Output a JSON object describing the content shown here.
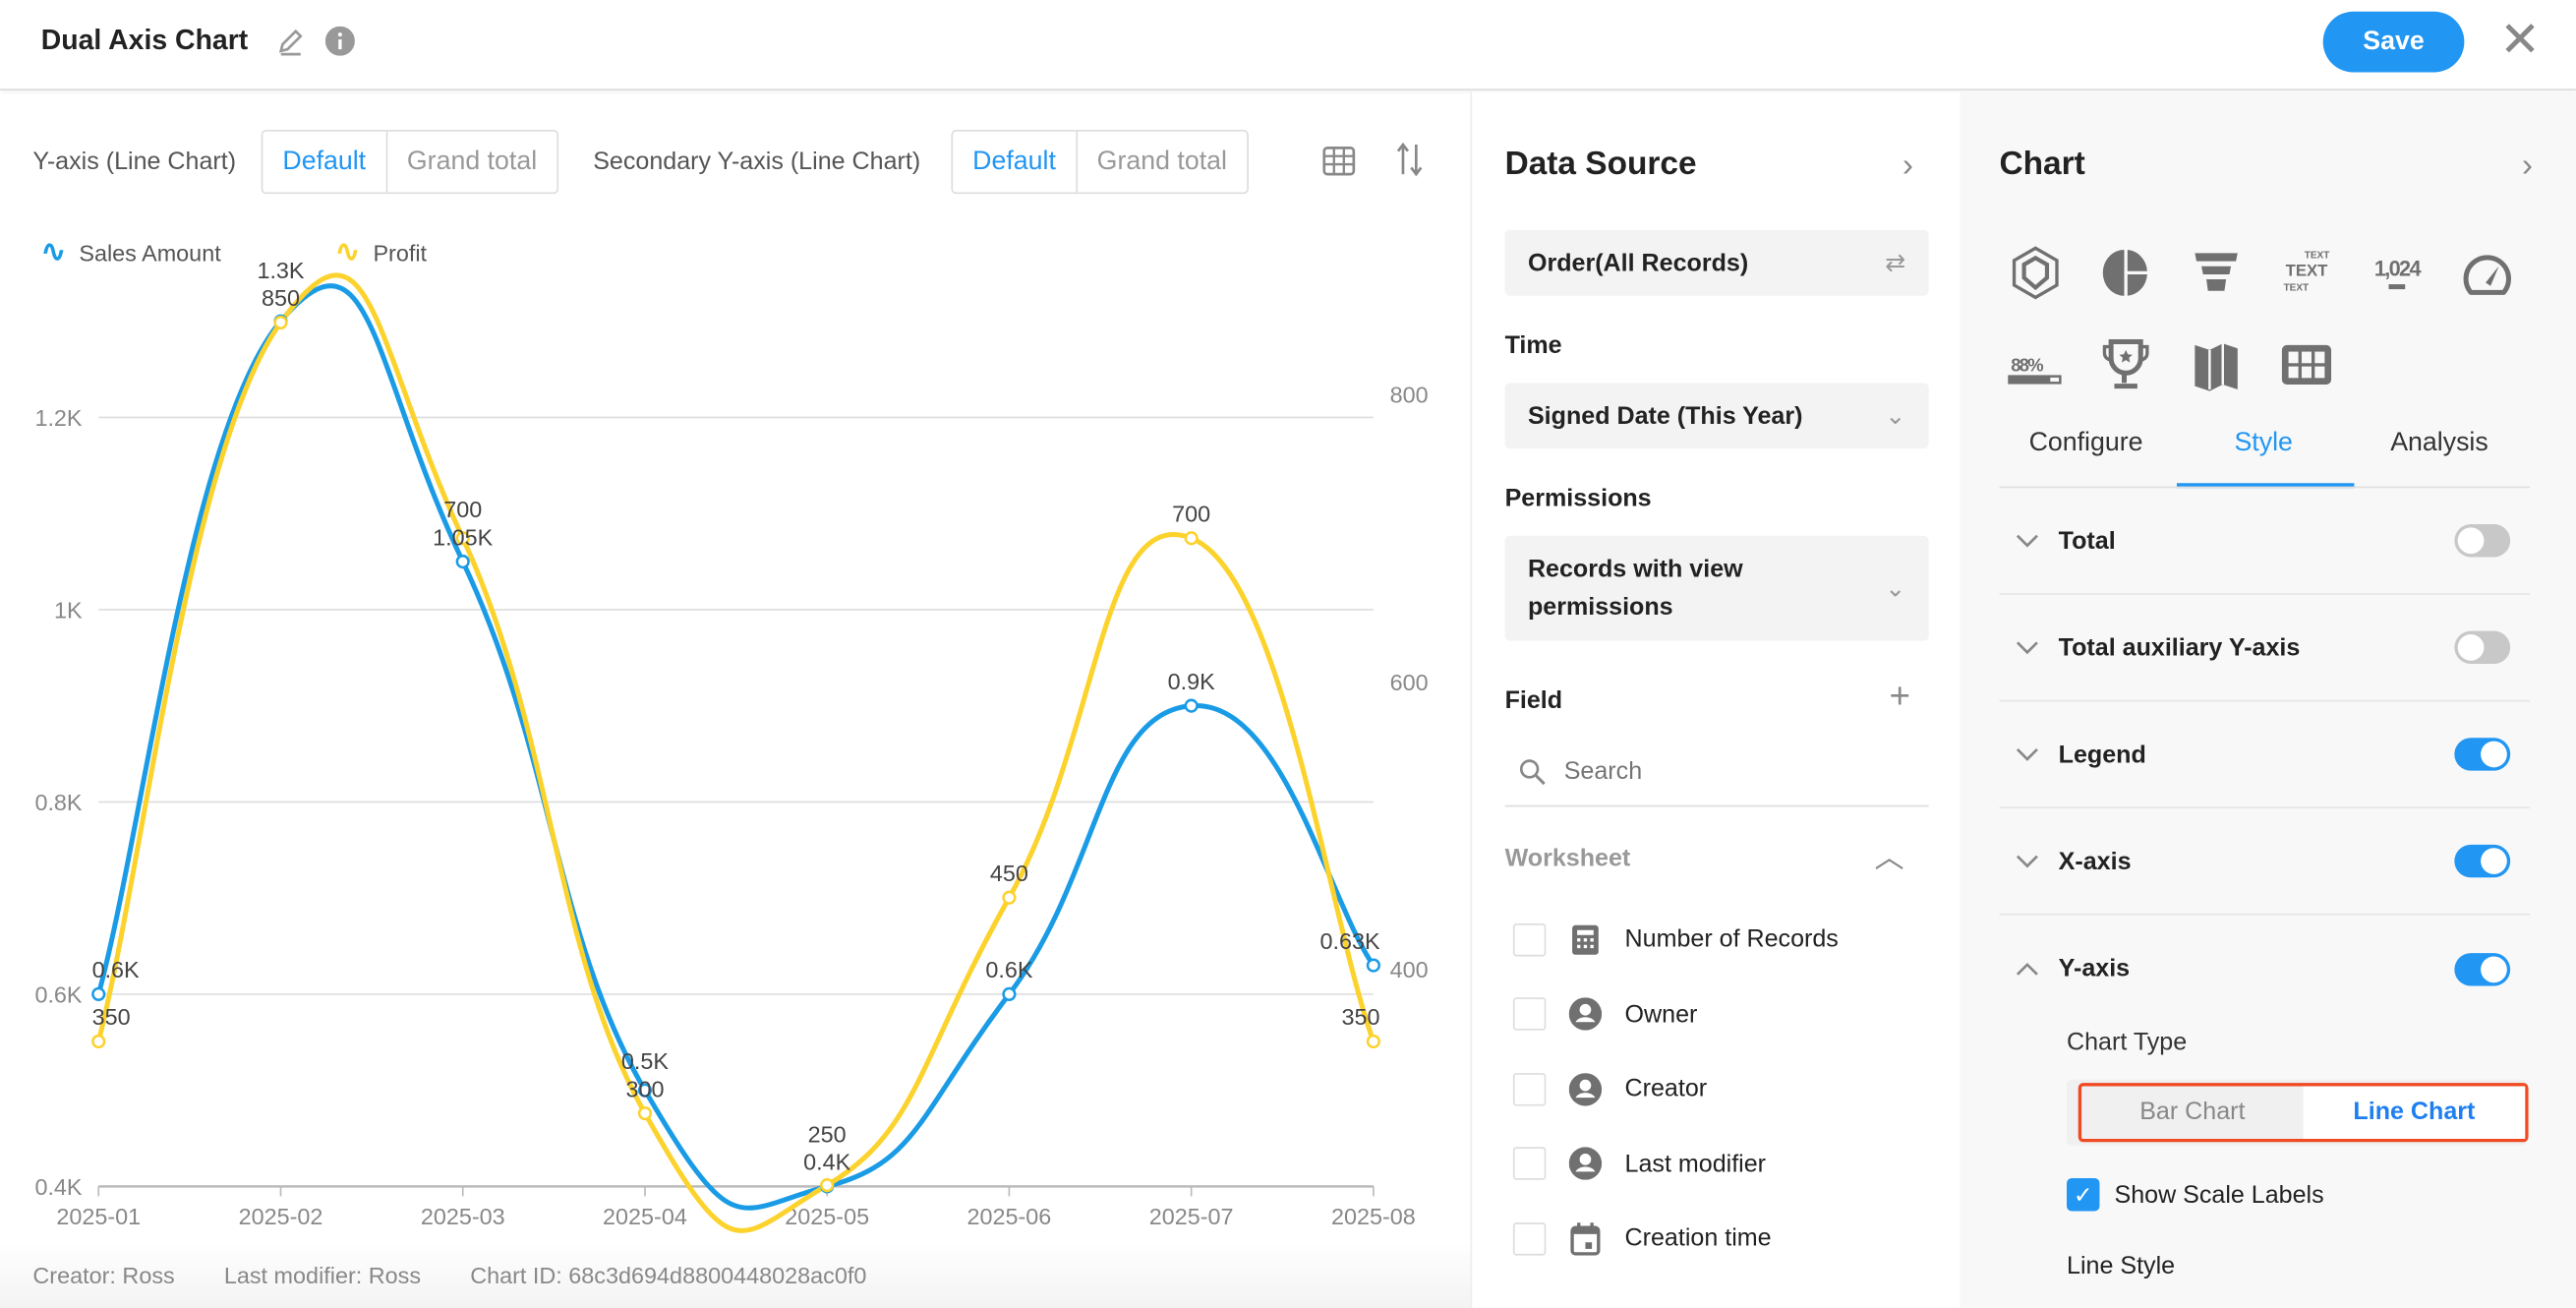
{
  "header": {
    "title": "Dual Axis Chart",
    "save_label": "Save"
  },
  "controls": {
    "y_axis_label": "Y-axis (Line Chart)",
    "secondary_label": "Secondary Y-axis (Line Chart)",
    "default_label": "Default",
    "grand_total_label": "Grand total"
  },
  "footer": {
    "creator": "Creator: Ross",
    "modifier": "Last modifier: Ross",
    "chart_id": "Chart ID: 68c3d694d8800448028ac0f0"
  },
  "chart_data": {
    "type": "line",
    "categories": [
      "2025-01",
      "2025-02",
      "2025-03",
      "2025-04",
      "2025-05",
      "2025-06",
      "2025-07",
      "2025-08"
    ],
    "series": [
      {
        "name": "Sales Amount",
        "axis": "left",
        "color": "#1a9be6",
        "values": [
          600,
          1300,
          1050,
          500,
          400,
          600,
          900,
          630
        ],
        "labels": [
          "0.6K",
          "1.3K",
          "1.05K",
          "0.5K",
          "0.4K",
          "0.6K",
          "0.9K",
          "0.63K"
        ]
      },
      {
        "name": "Profit",
        "axis": "right",
        "color": "#fcd22c",
        "values": [
          350,
          850,
          700,
          300,
          250,
          450,
          700,
          350
        ],
        "labels": [
          "350",
          "850",
          "700",
          "300",
          "250",
          "450",
          "700",
          "350"
        ]
      }
    ],
    "left_axis": {
      "ticks": [
        400,
        600,
        800,
        1000,
        1200
      ],
      "tick_labels": [
        "0.4K",
        "0.6K",
        "0.8K",
        "1K",
        "1.2K"
      ]
    },
    "right_axis": {
      "ticks": [
        400,
        600,
        800
      ],
      "tick_labels": [
        "400",
        "600",
        "800"
      ]
    },
    "grid": true,
    "legend": "top-left",
    "smooth": true
  },
  "datasource": {
    "title": "Data Source",
    "source": "Order(All Records)",
    "time_label": "Time",
    "time_value": "Signed Date (This Year)",
    "perm_label": "Permissions",
    "perm_value": "Records with view permissions",
    "field_label": "Field",
    "search_placeholder": "Search",
    "worksheet_label": "Worksheet",
    "fields": [
      {
        "label": "Number of Records",
        "icon": "calculator-icon"
      },
      {
        "label": "Owner",
        "icon": "user-icon"
      },
      {
        "label": "Creator",
        "icon": "user-icon"
      },
      {
        "label": "Last modifier",
        "icon": "user-icon"
      },
      {
        "label": "Creation time",
        "icon": "calendar-icon"
      }
    ]
  },
  "panel": {
    "title": "Chart",
    "chart_types": [
      "radar",
      "pie",
      "funnel",
      "text",
      "number-1,024",
      "gauge",
      "progress-88%",
      "leaderboard",
      "map",
      "table"
    ],
    "icon_text": {
      "text": "TEXT",
      "number": "1,024",
      "progress": "88%"
    },
    "tabs": [
      "Configure",
      "Style",
      "Analysis"
    ],
    "active_tab": "Style",
    "sections": [
      {
        "label": "Total",
        "on": false
      },
      {
        "label": "Total auxiliary Y-axis",
        "on": false
      },
      {
        "label": "Legend",
        "on": true
      },
      {
        "label": "X-axis",
        "on": true
      },
      {
        "label": "Y-axis",
        "on": true
      }
    ],
    "chart_type_label": "Chart Type",
    "bar_chart": "Bar Chart",
    "line_chart": "Line Chart",
    "selected_type": "Line Chart",
    "show_scale_labels": "Show Scale Labels",
    "show_scale_checked": true,
    "line_style": "Line Style",
    "accent": "#2196f3",
    "highlight": "#f04a23"
  }
}
